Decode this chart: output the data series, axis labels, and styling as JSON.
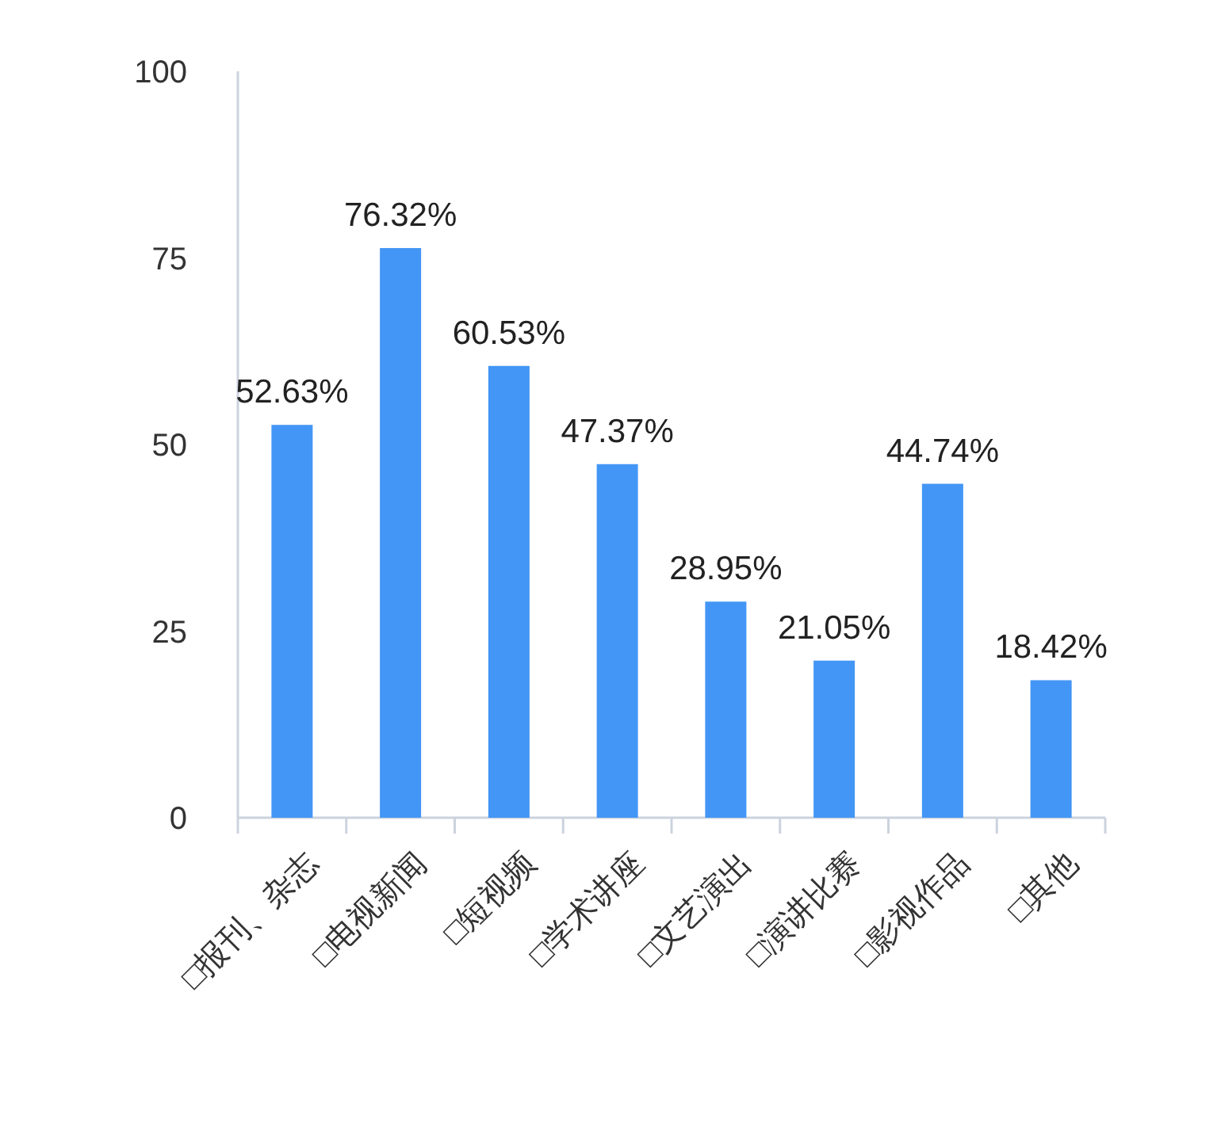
{
  "chart_data": {
    "type": "bar",
    "categories": [
      "□报刊、杂志",
      "□电视新闻",
      "□短视频",
      "□学术讲座",
      "□文艺演出",
      "□演讲比赛",
      "□影视作品",
      "□其他"
    ],
    "values": [
      52.63,
      76.32,
      60.53,
      47.37,
      28.95,
      21.05,
      44.74,
      18.42
    ],
    "value_labels": [
      "52.63%",
      "76.32%",
      "60.53%",
      "47.37%",
      "28.95%",
      "21.05%",
      "44.74%",
      "18.42%"
    ],
    "color": "#4396f5",
    "ylim": [
      0,
      100
    ],
    "yticks": [
      0,
      25,
      50,
      75,
      100
    ],
    "grid": false
  }
}
